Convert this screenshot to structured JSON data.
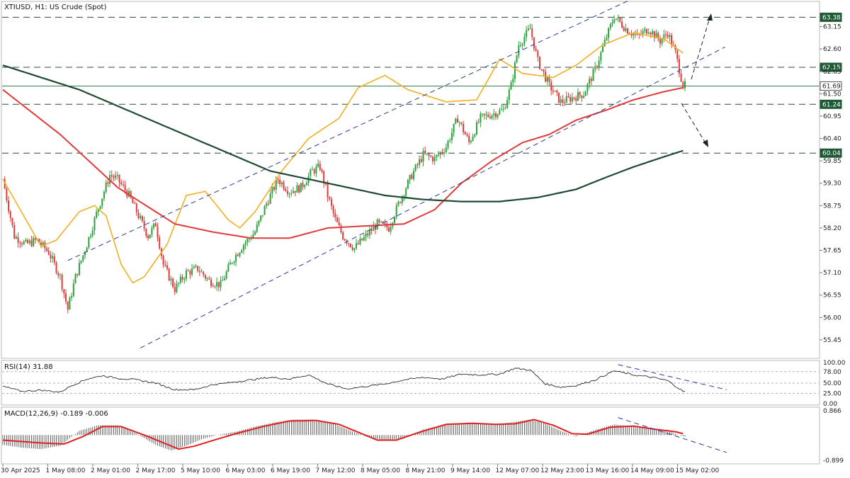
{
  "chart_data": [
    {
      "type": "candlestick",
      "title": "XTIUSD, H1:  US Crude (Spot)",
      "ylim": [
        55.1,
        63.7
      ],
      "y_ticks": [
        "63.15",
        "62.60",
        "62.05",
        "61.50",
        "60.95",
        "60.40",
        "59.85",
        "59.30",
        "58.75",
        "58.20",
        "57.65",
        "57.10",
        "56.55",
        "56.00",
        "55.45"
      ],
      "x_labels": [
        "30 Apr 2025",
        "1 May 08:00",
        "2 May 01:00",
        "2 May 17:00",
        "5 May 10:00",
        "6 May 03:00",
        "6 May 19:00",
        "7 May 12:00",
        "8 May 05:00",
        "8 May 21:00",
        "9 May 14:00",
        "12 May 07:00",
        "12 May 23:00",
        "13 May 16:00",
        "14 May 09:00",
        "15 May 02:00"
      ],
      "close_path": [
        [
          0,
          59.4
        ],
        [
          6,
          58.0
        ],
        [
          12,
          57.8
        ],
        [
          18,
          57.9
        ],
        [
          24,
          57.6
        ],
        [
          30,
          57.0
        ],
        [
          34,
          56.2
        ],
        [
          38,
          57.0
        ],
        [
          44,
          57.8
        ],
        [
          50,
          58.7
        ],
        [
          56,
          59.5
        ],
        [
          60,
          59.4
        ],
        [
          66,
          59.0
        ],
        [
          72,
          58.4
        ],
        [
          76,
          58.0
        ],
        [
          80,
          58.3
        ],
        [
          84,
          57.3
        ],
        [
          90,
          56.7
        ],
        [
          96,
          57.1
        ],
        [
          102,
          57.2
        ],
        [
          108,
          56.9
        ],
        [
          114,
          56.8
        ],
        [
          120,
          57.4
        ],
        [
          126,
          57.8
        ],
        [
          132,
          58.1
        ],
        [
          138,
          58.8
        ],
        [
          144,
          59.4
        ],
        [
          150,
          59.1
        ],
        [
          156,
          59.2
        ],
        [
          162,
          59.6
        ],
        [
          166,
          59.7
        ],
        [
          170,
          59.0
        ],
        [
          174,
          58.4
        ],
        [
          178,
          58.0
        ],
        [
          184,
          57.7
        ],
        [
          190,
          58.0
        ],
        [
          196,
          58.3
        ],
        [
          202,
          58.2
        ],
        [
          208,
          58.9
        ],
        [
          214,
          59.5
        ],
        [
          220,
          60.0
        ],
        [
          226,
          59.9
        ],
        [
          232,
          60.2
        ],
        [
          238,
          60.9
        ],
        [
          244,
          60.3
        ],
        [
          250,
          60.9
        ],
        [
          256,
          61.0
        ],
        [
          262,
          61.1
        ],
        [
          266,
          61.7
        ],
        [
          270,
          62.7
        ],
        [
          276,
          63.1
        ],
        [
          280,
          62.3
        ],
        [
          286,
          61.7
        ],
        [
          292,
          61.3
        ],
        [
          298,
          61.4
        ],
        [
          304,
          61.5
        ],
        [
          310,
          62.1
        ],
        [
          316,
          62.9
        ],
        [
          320,
          63.4
        ],
        [
          326,
          63.1
        ],
        [
          332,
          62.9
        ],
        [
          338,
          63.1
        ],
        [
          344,
          62.8
        ],
        [
          348,
          63.0
        ],
        [
          352,
          62.5
        ],
        [
          356,
          61.7
        ]
      ],
      "n_bars": 358,
      "series": [
        {
          "values": [
            [
              0,
              59.4
            ],
            [
              20,
              57.75
            ],
            [
              28,
              57.9
            ],
            [
              40,
              58.6
            ],
            [
              48,
              58.75
            ],
            [
              54,
              58.5
            ],
            [
              62,
              57.3
            ],
            [
              68,
              56.85
            ],
            [
              74,
              57.0
            ],
            [
              86,
              57.8
            ],
            [
              96,
              59.0
            ],
            [
              106,
              59.1
            ],
            [
              118,
              58.4
            ],
            [
              124,
              58.2
            ],
            [
              132,
              58.6
            ],
            [
              146,
              59.6
            ],
            [
              160,
              60.4
            ],
            [
              176,
              60.9
            ],
            [
              186,
              61.65
            ],
            [
              200,
              61.95
            ],
            [
              212,
              61.6
            ],
            [
              232,
              61.3
            ],
            [
              248,
              61.35
            ],
            [
              260,
              62.35
            ],
            [
              272,
              62.0
            ],
            [
              288,
              61.9
            ],
            [
              300,
              62.2
            ],
            [
              314,
              62.7
            ],
            [
              330,
              63.0
            ],
            [
              346,
              62.85
            ],
            [
              356,
              62.5
            ]
          ]
        },
        {
          "values": [
            [
              0,
              61.6
            ],
            [
              30,
              60.5
            ],
            [
              60,
              59.2
            ],
            [
              90,
              58.3
            ],
            [
              110,
              58.1
            ],
            [
              130,
              57.95
            ],
            [
              150,
              57.95
            ],
            [
              170,
              58.2
            ],
            [
              190,
              58.25
            ],
            [
              210,
              58.3
            ],
            [
              226,
              58.65
            ],
            [
              240,
              59.3
            ],
            [
              256,
              59.85
            ],
            [
              272,
              60.3
            ],
            [
              286,
              60.5
            ],
            [
              300,
              60.85
            ],
            [
              316,
              61.1
            ],
            [
              330,
              61.35
            ],
            [
              346,
              61.55
            ],
            [
              356,
              61.65
            ]
          ]
        },
        {
          "values": [
            [
              0,
              62.2
            ],
            [
              20,
              61.9
            ],
            [
              40,
              61.6
            ],
            [
              60,
              61.2
            ],
            [
              80,
              60.8
            ],
            [
              100,
              60.4
            ],
            [
              120,
              60.0
            ],
            [
              140,
              59.6
            ],
            [
              160,
              59.4
            ],
            [
              180,
              59.2
            ],
            [
              200,
              59.0
            ],
            [
              220,
              58.9
            ],
            [
              240,
              58.85
            ],
            [
              260,
              58.85
            ],
            [
              280,
              58.95
            ],
            [
              300,
              59.15
            ],
            [
              316,
              59.45
            ],
            [
              330,
              59.7
            ],
            [
              346,
              59.95
            ],
            [
              356,
              60.1
            ]
          ]
        }
      ],
      "levels": [
        {
          "value": "63.38",
          "color": "#ffffff",
          "bg": "#1e5a36"
        },
        {
          "value": "62.15",
          "color": "#ffffff",
          "bg": "#1e5a36"
        },
        {
          "value": "61.69",
          "color": "#222222",
          "bg": "#ffffff"
        },
        {
          "value": "61.24",
          "color": "#ffffff",
          "bg": "#1e5a36"
        },
        {
          "value": "60.04",
          "color": "#ffffff",
          "bg": "#1e5a36"
        }
      ],
      "colors": {
        "bull": "#27a23a",
        "bear": "#e03a3a",
        "ema_fast": "#f0b020",
        "ema_mid": "#e03a3a",
        "ema_slow": "#1e4a32",
        "trend": "#2a3a9a"
      }
    },
    {
      "type": "line",
      "title": "RSI(14) 31.88",
      "ylim": [
        0,
        100
      ],
      "y_ticks": [
        "100.00",
        "78.00",
        "50.00",
        "25.00",
        "0.00"
      ],
      "values": [
        [
          0,
          42
        ],
        [
          10,
          30
        ],
        [
          20,
          33
        ],
        [
          30,
          28
        ],
        [
          36,
          44
        ],
        [
          44,
          60
        ],
        [
          52,
          68
        ],
        [
          60,
          62
        ],
        [
          70,
          58
        ],
        [
          80,
          50
        ],
        [
          90,
          34
        ],
        [
          100,
          34
        ],
        [
          110,
          46
        ],
        [
          120,
          52
        ],
        [
          130,
          58
        ],
        [
          140,
          64
        ],
        [
          150,
          60
        ],
        [
          160,
          70
        ],
        [
          170,
          48
        ],
        [
          180,
          36
        ],
        [
          190,
          42
        ],
        [
          200,
          48
        ],
        [
          210,
          58
        ],
        [
          220,
          64
        ],
        [
          230,
          60
        ],
        [
          240,
          72
        ],
        [
          250,
          70
        ],
        [
          260,
          72
        ],
        [
          268,
          86
        ],
        [
          276,
          82
        ],
        [
          284,
          48
        ],
        [
          292,
          40
        ],
        [
          300,
          44
        ],
        [
          310,
          58
        ],
        [
          320,
          80
        ],
        [
          330,
          70
        ],
        [
          340,
          64
        ],
        [
          348,
          56
        ],
        [
          356,
          30
        ]
      ]
    },
    {
      "type": "bar",
      "title": "MACD(12,26,9) -0.189 -0.006",
      "ylim": [
        -0.899,
        0.866
      ],
      "y_ticks": [
        "0.866",
        "-0.899"
      ],
      "values": [
        [
          0,
          -0.35
        ],
        [
          10,
          -0.45
        ],
        [
          20,
          -0.5
        ],
        [
          30,
          -0.38
        ],
        [
          40,
          0.15
        ],
        [
          50,
          0.35
        ],
        [
          60,
          0.35
        ],
        [
          70,
          0.05
        ],
        [
          80,
          -0.35
        ],
        [
          88,
          -0.55
        ],
        [
          96,
          -0.38
        ],
        [
          104,
          -0.15
        ],
        [
          112,
          0.0
        ],
        [
          122,
          0.12
        ],
        [
          132,
          0.3
        ],
        [
          142,
          0.45
        ],
        [
          152,
          0.55
        ],
        [
          162,
          0.55
        ],
        [
          172,
          0.45
        ],
        [
          182,
          0.15
        ],
        [
          192,
          -0.1
        ],
        [
          200,
          -0.18
        ],
        [
          210,
          -0.12
        ],
        [
          220,
          0.2
        ],
        [
          232,
          0.38
        ],
        [
          244,
          0.42
        ],
        [
          256,
          0.38
        ],
        [
          266,
          0.45
        ],
        [
          276,
          0.55
        ],
        [
          284,
          0.4
        ],
        [
          292,
          0.15
        ],
        [
          300,
          -0.05
        ],
        [
          310,
          0.18
        ],
        [
          320,
          0.38
        ],
        [
          330,
          0.3
        ],
        [
          340,
          0.2
        ],
        [
          350,
          0.1
        ],
        [
          356,
          -0.05
        ]
      ],
      "signal": [
        [
          0,
          -0.18
        ],
        [
          20,
          -0.28
        ],
        [
          32,
          -0.32
        ],
        [
          42,
          -0.05
        ],
        [
          52,
          0.3
        ],
        [
          62,
          0.3
        ],
        [
          74,
          0.0
        ],
        [
          82,
          -0.22
        ],
        [
          92,
          -0.5
        ],
        [
          100,
          -0.4
        ],
        [
          112,
          -0.15
        ],
        [
          122,
          0.05
        ],
        [
          136,
          0.3
        ],
        [
          150,
          0.5
        ],
        [
          164,
          0.52
        ],
        [
          176,
          0.38
        ],
        [
          186,
          0.1
        ],
        [
          196,
          -0.18
        ],
        [
          206,
          -0.18
        ],
        [
          218,
          0.1
        ],
        [
          232,
          0.38
        ],
        [
          246,
          0.42
        ],
        [
          258,
          0.38
        ],
        [
          268,
          0.4
        ],
        [
          278,
          0.55
        ],
        [
          288,
          0.35
        ],
        [
          298,
          0.05
        ],
        [
          306,
          0.03
        ],
        [
          318,
          0.28
        ],
        [
          330,
          0.32
        ],
        [
          342,
          0.2
        ],
        [
          352,
          0.12
        ],
        [
          356,
          0.05
        ]
      ]
    }
  ]
}
